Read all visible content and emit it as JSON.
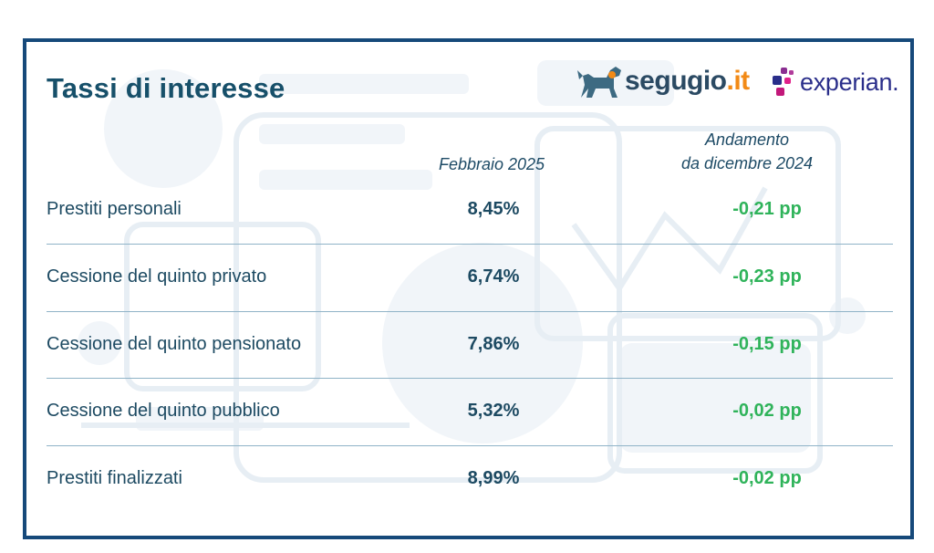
{
  "title": "Tassi di interesse",
  "logos": {
    "segugio": {
      "name": "segugio",
      "tld": ".it"
    },
    "experian": {
      "name": "experian",
      "suffix": "."
    }
  },
  "columns": {
    "rate": "Febbraio 2025",
    "trend_line1": "Andamento",
    "trend_line2": "da dicembre 2024"
  },
  "rows": [
    {
      "label": "Prestiti personali",
      "rate": "8,45%",
      "delta": "-0,21 pp"
    },
    {
      "label": "Cessione del quinto privato",
      "rate": "6,74%",
      "delta": "-0,23 pp"
    },
    {
      "label": "Cessione del quinto pensionato",
      "rate": "7,86%",
      "delta": "-0,15 pp"
    },
    {
      "label": "Cessione del quinto pubblico",
      "rate": "5,32%",
      "delta": "-0,02 pp"
    },
    {
      "label": "Prestiti finalizzati",
      "rate": "8,99%",
      "delta": "-0,02 pp"
    }
  ],
  "colors": {
    "border": "#16497a",
    "title": "#17506a",
    "text": "#1d4a62",
    "positive_delta": "#2fb35a",
    "segugio_accent": "#f28a16",
    "experian_text": "#2a2e8a"
  }
}
